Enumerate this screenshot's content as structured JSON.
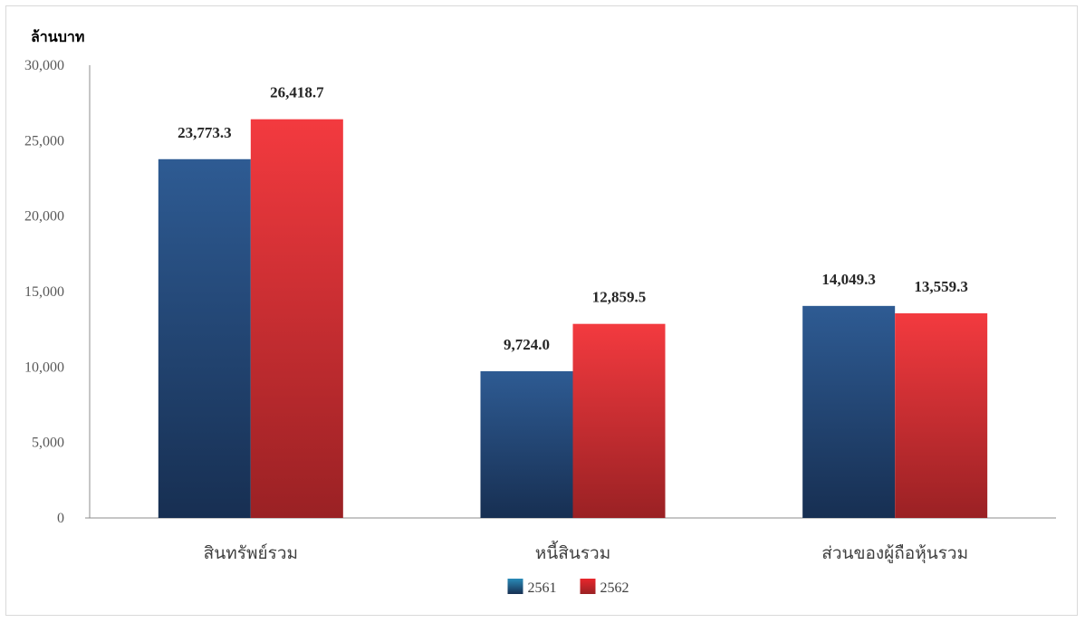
{
  "chart_data": {
    "type": "bar",
    "y_unit_label": "ล้านบาท",
    "categories": [
      "สินทรัพย์รวม",
      "หนี้สินรวม",
      "ส่วนของผู้ถือหุ้นรวม"
    ],
    "series": [
      {
        "name": "2561",
        "values": [
          23773.3,
          9724.0,
          14049.3
        ],
        "labels": [
          "23,773.3",
          "9,724.0",
          "14,049.3"
        ],
        "color": "#2e5b93",
        "color_dark": "#172f52",
        "legend_color": "#2a8bb8"
      },
      {
        "name": "2562",
        "values": [
          26418.7,
          12859.5,
          13559.3
        ],
        "labels": [
          "26,418.7",
          "12,859.5",
          "13,559.3"
        ],
        "color": "#f33a3f",
        "color_dark": "#9a2124",
        "legend_color": "#e8262c"
      }
    ],
    "ylim": [
      0,
      30000
    ],
    "yticks": [
      0,
      5000,
      10000,
      15000,
      20000,
      25000,
      30000
    ],
    "ytick_labels": [
      "0",
      "5,000",
      "10,000",
      "15,000",
      "20,000",
      "25,000",
      "30,000"
    ],
    "grid": false,
    "legend_position": "bottom"
  }
}
